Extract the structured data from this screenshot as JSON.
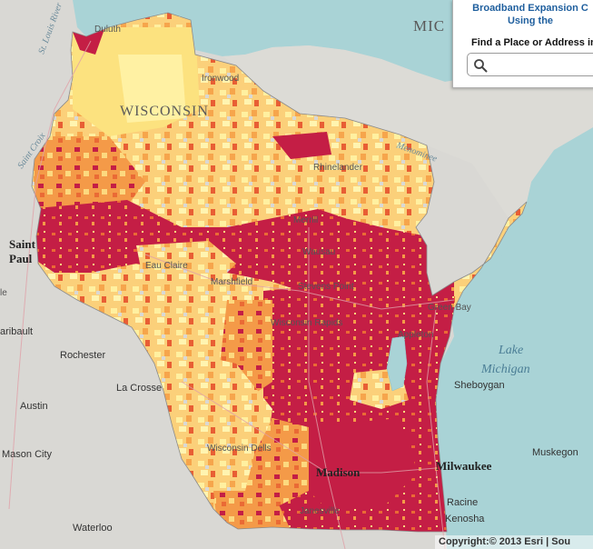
{
  "map": {
    "state_label": "WISCONSIN",
    "neighbor_label": "MIC",
    "lake_label_1": "Lake",
    "lake_label_2": "Michigan",
    "cities": {
      "duluth": "Duluth",
      "ironwood": "Ironwood",
      "rhinelander": "Rhinelander",
      "merrill": "Merrill",
      "wausau": "Wausau",
      "marshfield": "Marshfield",
      "stevens_point": "Stevens Point",
      "wisconsin_rapids": "Wisconsin Rapids",
      "eau_claire": "Eau Claire",
      "green_bay": "Green Bay",
      "appleton": "Appleton",
      "sheboygan": "Sheboygan",
      "saint_paul_1": "Saint",
      "saint_paul_2": "Paul",
      "faribault": "aribault",
      "rochester": "Rochester",
      "la_crosse": "La Crosse",
      "austin": "Austin",
      "mason_city": "Mason City",
      "waterloo": "Waterloo",
      "madison": "Madison",
      "milwaukee": "Milwaukee",
      "racine": "Racine",
      "kenosha": "Kenosha",
      "muskegon": "Muskegon",
      "janesville": "Janesville",
      "wisconsin_dells": "Wisconsin Dells",
      "edge_e": "le"
    },
    "water_labels": {
      "st_louis_river": "St. Louis River",
      "st_croix": "Saint Croix",
      "menominee": "Menominee"
    },
    "colors": {
      "water": "#a9d3d6",
      "land": "#d9d8d4",
      "level_1": "#fff3a8",
      "level_2": "#fcd97f",
      "level_3": "#f7a84e",
      "level_4": "#ea6a35",
      "level_5": "#c41e45"
    }
  },
  "panel": {
    "title_line1": "Broadband Expansion C",
    "title_line2": "Using the",
    "find_label": "Find a Place or Address in",
    "search_placeholder": ""
  },
  "attribution": "Copyright:© 2013 Esri | Sou"
}
